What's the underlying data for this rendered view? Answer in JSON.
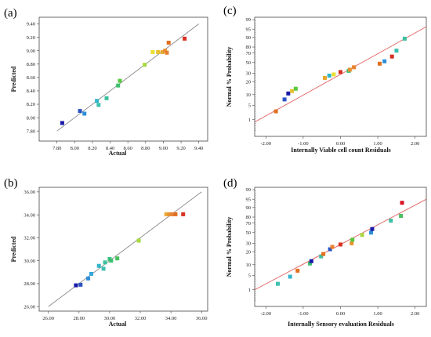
{
  "chart_data": [
    {
      "panel": "(a)",
      "type": "scatter",
      "xlabel": "Actual",
      "ylabel": "Predicted",
      "xlim": [
        7.6,
        9.5
      ],
      "ylim": [
        7.65,
        9.5
      ],
      "xticks": [
        "7.80",
        "8.00",
        "8.20",
        "8.40",
        "8.60",
        "8.80",
        "9.00",
        "9.20",
        "9.40"
      ],
      "yticks": [
        "7.80",
        "8.00",
        "8.20",
        "8.40",
        "8.60",
        "8.80",
        "9.00",
        "9.20",
        "9.40"
      ],
      "line": {
        "x": [
          7.8,
          9.4
        ],
        "y": [
          7.8,
          9.4
        ]
      },
      "points": [
        {
          "x": 7.86,
          "y": 7.92,
          "color": "#1a1aa8"
        },
        {
          "x": 8.06,
          "y": 8.1,
          "color": "#2b54c4"
        },
        {
          "x": 8.11,
          "y": 8.06,
          "color": "#2d8fd8"
        },
        {
          "x": 8.25,
          "y": 8.25,
          "color": "#32b4c8"
        },
        {
          "x": 8.27,
          "y": 8.19,
          "color": "#3cc0b0"
        },
        {
          "x": 8.36,
          "y": 8.29,
          "color": "#3cc0a0"
        },
        {
          "x": 8.49,
          "y": 8.48,
          "color": "#3cc070"
        },
        {
          "x": 8.51,
          "y": 8.55,
          "color": "#58c840"
        },
        {
          "x": 8.79,
          "y": 8.79,
          "color": "#a8d840"
        },
        {
          "x": 8.88,
          "y": 8.98,
          "color": "#e8e030"
        },
        {
          "x": 8.94,
          "y": 8.98,
          "color": "#e8c030"
        },
        {
          "x": 8.99,
          "y": 8.98,
          "color": "#e8a830"
        },
        {
          "x": 9.02,
          "y": 9.0,
          "color": "#e89030"
        },
        {
          "x": 9.04,
          "y": 8.97,
          "color": "#e88030"
        },
        {
          "x": 9.06,
          "y": 9.12,
          "color": "#e07020"
        },
        {
          "x": 9.24,
          "y": 9.18,
          "color": "#d83020"
        }
      ]
    },
    {
      "panel": "(b)",
      "type": "scatter",
      "xlabel": "Actual",
      "ylabel": "Predicted",
      "xlim": [
        25.4,
        36.4
      ],
      "ylim": [
        25.6,
        36.4
      ],
      "xticks": [
        "26.00",
        "28.00",
        "30.00",
        "32.00",
        "34.00",
        "36.00"
      ],
      "yticks": [
        "26.00",
        "28.00",
        "30.00",
        "32.00",
        "34.00",
        "36.00"
      ],
      "line": {
        "x": [
          26.0,
          36.0
        ],
        "y": [
          26.0,
          36.0
        ]
      },
      "points": [
        {
          "x": 27.8,
          "y": 27.85,
          "color": "#1a1aa8"
        },
        {
          "x": 28.1,
          "y": 27.9,
          "color": "#2b54c4"
        },
        {
          "x": 28.6,
          "y": 28.45,
          "color": "#2d8fd8"
        },
        {
          "x": 28.8,
          "y": 28.85,
          "color": "#32a8d8"
        },
        {
          "x": 29.3,
          "y": 29.55,
          "color": "#32b4c8"
        },
        {
          "x": 29.6,
          "y": 29.3,
          "color": "#3cc0b0"
        },
        {
          "x": 29.7,
          "y": 29.85,
          "color": "#3cc0a0"
        },
        {
          "x": 30.0,
          "y": 30.15,
          "color": "#3cc080"
        },
        {
          "x": 30.1,
          "y": 30.0,
          "color": "#3cc070"
        },
        {
          "x": 30.5,
          "y": 30.2,
          "color": "#48c060"
        },
        {
          "x": 31.9,
          "y": 31.75,
          "color": "#a8d840"
        },
        {
          "x": 33.7,
          "y": 34.05,
          "color": "#e8a830"
        },
        {
          "x": 33.9,
          "y": 34.05,
          "color": "#e89030"
        },
        {
          "x": 34.1,
          "y": 34.05,
          "color": "#e88030"
        },
        {
          "x": 34.3,
          "y": 34.05,
          "color": "#e07020"
        },
        {
          "x": 34.8,
          "y": 34.05,
          "color": "#d83020"
        }
      ]
    },
    {
      "panel": "(c)",
      "type": "scatter",
      "xlabel": "Internally Viable cell count Residuals",
      "ylabel": "Normal % Probability",
      "xlim": [
        -2.3,
        2.3
      ],
      "ylim": [
        0,
        1
      ],
      "xticks": [
        -2,
        -1,
        0,
        1,
        2
      ],
      "xtick_labels": [
        "-2.00",
        "-1.00",
        "0.00",
        "1.00",
        "2.00"
      ],
      "yticks": [
        1,
        5,
        10,
        20,
        30,
        50,
        70,
        80,
        90,
        95,
        99
      ],
      "ytick_pos": [
        0.14,
        0.26,
        0.35,
        0.46,
        0.53,
        0.62,
        0.7,
        0.75,
        0.83,
        0.9,
        0.98
      ],
      "line": {
        "x": [
          -2.3,
          2.3
        ],
        "y": [
          0.12,
          0.92
        ]
      },
      "points": [
        {
          "x": -1.73,
          "y": 0.21,
          "color": "#e07020"
        },
        {
          "x": -1.5,
          "y": 0.31,
          "color": "#2b54c4"
        },
        {
          "x": -1.4,
          "y": 0.36,
          "color": "#1a1aa8"
        },
        {
          "x": -1.3,
          "y": 0.38,
          "color": "#e8c030"
        },
        {
          "x": -1.2,
          "y": 0.4,
          "color": "#58c840"
        },
        {
          "x": -0.42,
          "y": 0.49,
          "color": "#e8a830"
        },
        {
          "x": -0.3,
          "y": 0.51,
          "color": "#32b4c8"
        },
        {
          "x": -0.18,
          "y": 0.52,
          "color": "#e8e030"
        },
        {
          "x": 0.0,
          "y": 0.54,
          "color": "#d83020"
        },
        {
          "x": 0.22,
          "y": 0.55,
          "color": "#3cc070"
        },
        {
          "x": 0.25,
          "y": 0.56,
          "color": "#e89030"
        },
        {
          "x": 0.36,
          "y": 0.58,
          "color": "#e88030"
        },
        {
          "x": 1.05,
          "y": 0.61,
          "color": "#e07020"
        },
        {
          "x": 1.18,
          "y": 0.63,
          "color": "#2d8fd8"
        },
        {
          "x": 1.38,
          "y": 0.67,
          "color": "#d83020"
        },
        {
          "x": 1.5,
          "y": 0.72,
          "color": "#3cc0b0"
        },
        {
          "x": 1.72,
          "y": 0.82,
          "color": "#3cc0a0"
        }
      ]
    },
    {
      "panel": "(d)",
      "type": "scatter",
      "xlabel": "Internally Sensory evaluation Residuals",
      "ylabel": "Normal % Probability",
      "xlim": [
        -2.3,
        2.3
      ],
      "ylim": [
        0,
        1
      ],
      "xticks": [
        -2,
        -1,
        0,
        1,
        2
      ],
      "xtick_labels": [
        "-2.00",
        "-1.00",
        "0.00",
        "1.00",
        "2.00"
      ],
      "yticks": [
        1,
        5,
        10,
        20,
        30,
        50,
        70,
        80,
        90,
        95,
        99
      ],
      "ytick_pos": [
        0.14,
        0.26,
        0.35,
        0.46,
        0.53,
        0.62,
        0.7,
        0.75,
        0.83,
        0.9,
        0.98
      ],
      "line": {
        "x": [
          -2.3,
          2.3
        ],
        "y": [
          0.14,
          0.9
        ]
      },
      "points": [
        {
          "x": -1.68,
          "y": 0.19,
          "color": "#3cc0b0"
        },
        {
          "x": -1.35,
          "y": 0.25,
          "color": "#32b4c8"
        },
        {
          "x": -1.15,
          "y": 0.3,
          "color": "#e07020"
        },
        {
          "x": -0.82,
          "y": 0.36,
          "color": "#3cc070"
        },
        {
          "x": -0.78,
          "y": 0.38,
          "color": "#1a1aa8"
        },
        {
          "x": -0.52,
          "y": 0.42,
          "color": "#3cc0a0"
        },
        {
          "x": -0.46,
          "y": 0.44,
          "color": "#e07020"
        },
        {
          "x": -0.28,
          "y": 0.48,
          "color": "#2b54c4"
        },
        {
          "x": -0.22,
          "y": 0.5,
          "color": "#e88030"
        },
        {
          "x": 0.0,
          "y": 0.52,
          "color": "#d83020"
        },
        {
          "x": 0.3,
          "y": 0.53,
          "color": "#e89030"
        },
        {
          "x": 0.32,
          "y": 0.56,
          "color": "#58c840"
        },
        {
          "x": 0.58,
          "y": 0.6,
          "color": "#a8d840"
        },
        {
          "x": 0.82,
          "y": 0.62,
          "color": "#2d8fd8"
        },
        {
          "x": 0.85,
          "y": 0.65,
          "color": "#1a1aa8"
        },
        {
          "x": 1.35,
          "y": 0.72,
          "color": "#3cc0a0"
        },
        {
          "x": 1.62,
          "y": 0.76,
          "color": "#48c060"
        },
        {
          "x": 1.65,
          "y": 0.87,
          "color": "#d81020"
        }
      ]
    }
  ]
}
